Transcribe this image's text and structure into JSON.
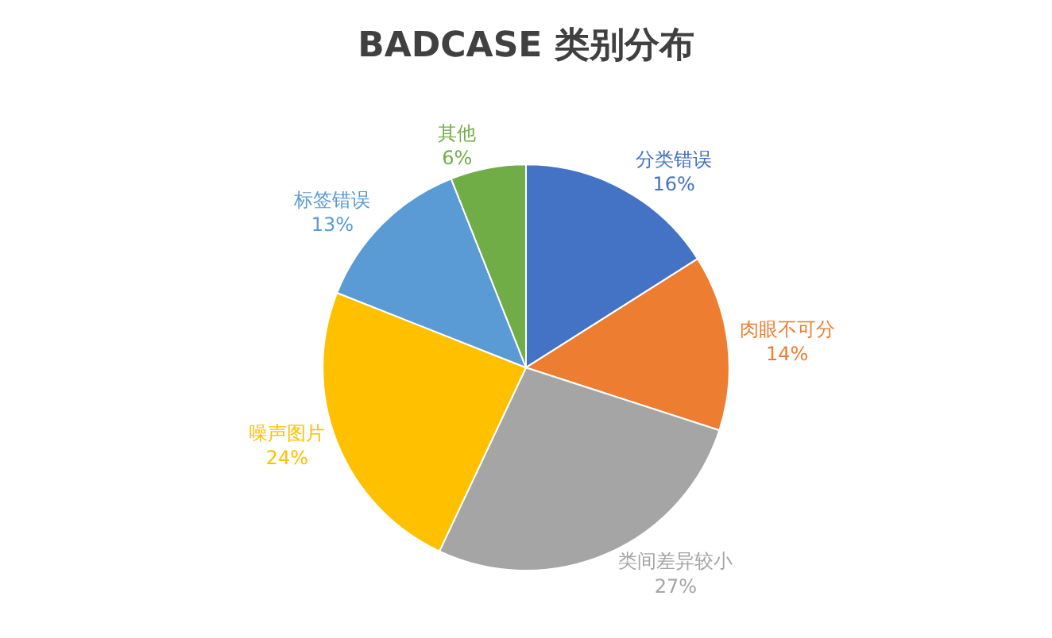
{
  "chart_data": {
    "type": "pie",
    "title": "BADCASE 类别分布",
    "categories": [
      "分类错误",
      "肉眼不可分",
      "类间差异较小",
      "噪声图片",
      "标签错误",
      "其他"
    ],
    "values": [
      16,
      14,
      27,
      24,
      13,
      6
    ],
    "value_labels": [
      "16%",
      "14%",
      "27%",
      "24%",
      "13%",
      "6%"
    ],
    "colors": [
      "#4472c4",
      "#ed7d31",
      "#a5a5a5",
      "#ffc000",
      "#5b9bd5",
      "#70ad47"
    ],
    "legend": false
  }
}
